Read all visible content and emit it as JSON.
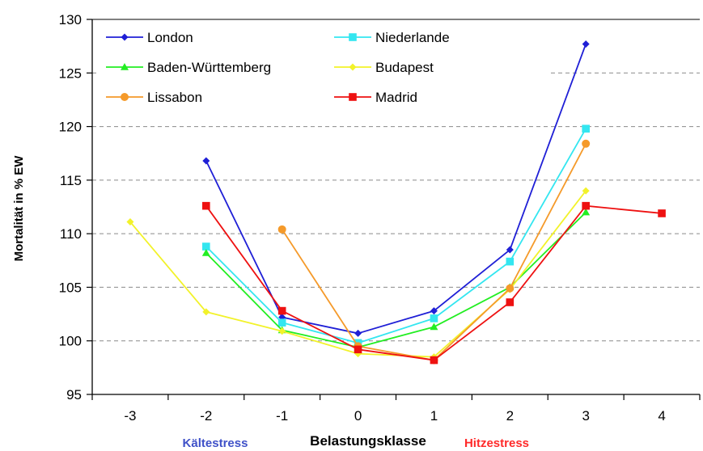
{
  "chart_data": {
    "type": "line",
    "title": "",
    "xlabel": "Belastungsklasse",
    "ylabel": "Mortalität in % EW",
    "x": [
      -3,
      -2,
      -1,
      0,
      1,
      2,
      3,
      4
    ],
    "x_tick_labels": [
      "-3",
      "-2",
      "-1",
      "0",
      "1",
      "2",
      "3",
      "4"
    ],
    "y_ticks": [
      95,
      100,
      105,
      110,
      115,
      120,
      125,
      130
    ],
    "ylim": [
      95,
      130
    ],
    "grid": "horizontal dashed",
    "legend_position": "top-left, 2 columns",
    "annotations": {
      "left": "Kältestress",
      "right": "Hitzestress",
      "left_color": "#3f51c8",
      "right_color": "#ff2a2a"
    },
    "series": [
      {
        "name": "London",
        "color": "#1f1fd6",
        "marker": "diamond",
        "points": [
          [
            -2,
            116.8
          ],
          [
            -1,
            102.2
          ],
          [
            0,
            100.7
          ],
          [
            1,
            102.8
          ],
          [
            2,
            108.5
          ],
          [
            3,
            127.7
          ]
        ]
      },
      {
        "name": "Niederlande",
        "color": "#33e6f0",
        "marker": "square",
        "points": [
          [
            -2,
            108.8
          ],
          [
            -1,
            101.7
          ],
          [
            0,
            99.8
          ],
          [
            1,
            102.1
          ],
          [
            2,
            107.4
          ],
          [
            3,
            119.8
          ]
        ]
      },
      {
        "name": "Baden-Württemberg",
        "color": "#22ee22",
        "marker": "triangle",
        "points": [
          [
            -2,
            108.2
          ],
          [
            -1,
            101.0
          ],
          [
            0,
            99.4
          ],
          [
            1,
            101.3
          ],
          [
            2,
            105.0
          ],
          [
            3,
            112.0
          ]
        ]
      },
      {
        "name": "Budapest",
        "color": "#f2f22a",
        "marker": "diamond",
        "points": [
          [
            -3,
            111.1
          ],
          [
            -2,
            102.7
          ],
          [
            -1,
            100.9
          ],
          [
            0,
            98.8
          ],
          [
            1,
            98.5
          ],
          [
            2,
            104.8
          ],
          [
            3,
            114.0
          ]
        ]
      },
      {
        "name": "Lissabon",
        "color": "#f59a2a",
        "marker": "circle",
        "points": [
          [
            -1,
            110.4
          ],
          [
            0,
            99.5
          ],
          [
            1,
            98.2
          ],
          [
            2,
            104.9
          ],
          [
            3,
            118.4
          ]
        ]
      },
      {
        "name": "Madrid",
        "color": "#ee1111",
        "marker": "square",
        "points": [
          [
            -2,
            112.6
          ],
          [
            -1,
            102.8
          ],
          [
            0,
            99.2
          ],
          [
            1,
            98.2
          ],
          [
            2,
            103.6
          ],
          [
            3,
            112.6
          ],
          [
            4,
            111.9
          ]
        ]
      }
    ]
  }
}
